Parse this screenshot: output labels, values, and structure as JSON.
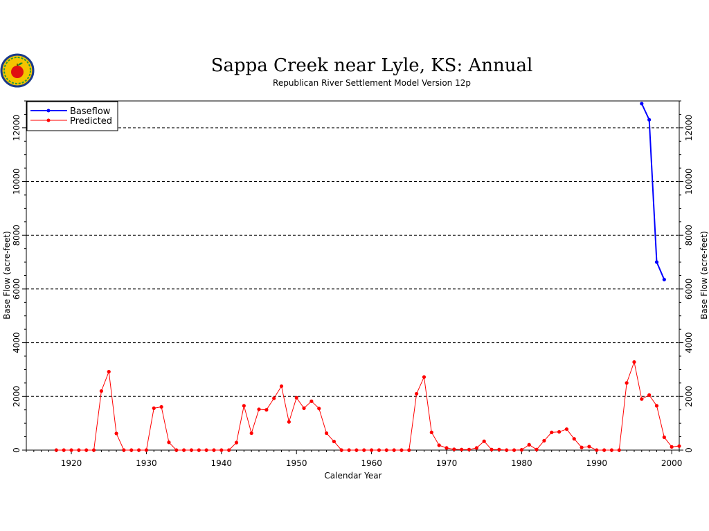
{
  "chart_data": {
    "type": "line",
    "title": "Sappa Creek near Lyle, KS: Annual",
    "subtitle": "Republican River Settlement Model Version 12p",
    "xlabel": "Calendar Year",
    "ylabel": "Base Flow (acre-feet)",
    "xlim": [
      1914,
      2001
    ],
    "ylim": [
      0,
      13000
    ],
    "xticks": [
      1920,
      1930,
      1940,
      1950,
      1960,
      1970,
      1980,
      1990,
      2000
    ],
    "yticks": [
      0,
      2000,
      4000,
      6000,
      8000,
      10000,
      12000
    ],
    "grid": "horizontal-dashed",
    "legend_position": "top-left",
    "colors": {
      "baseflow": "#0000ff",
      "predicted": "#ff0000"
    },
    "logo": "apple-logo",
    "series": [
      {
        "name": "Baseflow",
        "color": "#0000ff",
        "x": [
          1996,
          1997,
          1998,
          1999
        ],
        "y": [
          12900,
          12300,
          7000,
          6350
        ]
      },
      {
        "name": "Predicted",
        "color": "#ff0000",
        "x": [
          1918,
          1919,
          1920,
          1921,
          1922,
          1923,
          1924,
          1925,
          1926,
          1927,
          1928,
          1929,
          1930,
          1931,
          1932,
          1933,
          1934,
          1935,
          1936,
          1937,
          1938,
          1939,
          1940,
          1941,
          1942,
          1943,
          1944,
          1945,
          1946,
          1947,
          1948,
          1949,
          1950,
          1951,
          1952,
          1953,
          1954,
          1955,
          1956,
          1957,
          1958,
          1959,
          1960,
          1961,
          1962,
          1963,
          1964,
          1965,
          1966,
          1967,
          1968,
          1969,
          1970,
          1971,
          1972,
          1973,
          1974,
          1975,
          1976,
          1977,
          1978,
          1979,
          1980,
          1981,
          1982,
          1983,
          1984,
          1985,
          1986,
          1987,
          1988,
          1989,
          1990,
          1991,
          1992,
          1993,
          1994,
          1995,
          1996,
          1997,
          1998,
          1999,
          2000,
          2001
        ],
        "y": [
          0,
          0,
          0,
          0,
          0,
          0,
          2200,
          2920,
          620,
          0,
          0,
          0,
          0,
          1560,
          1610,
          290,
          0,
          0,
          0,
          0,
          0,
          0,
          0,
          0,
          280,
          1650,
          630,
          1520,
          1500,
          1930,
          2380,
          1050,
          1950,
          1560,
          1820,
          1550,
          630,
          320,
          0,
          0,
          0,
          0,
          0,
          0,
          0,
          0,
          0,
          0,
          2100,
          2720,
          660,
          180,
          80,
          30,
          20,
          20,
          80,
          330,
          20,
          20,
          0,
          0,
          10,
          200,
          20,
          350,
          660,
          680,
          780,
          420,
          100,
          130,
          0,
          0,
          0,
          0,
          2500,
          3280,
          1900,
          2050,
          1650,
          480,
          120,
          150
        ]
      }
    ]
  }
}
